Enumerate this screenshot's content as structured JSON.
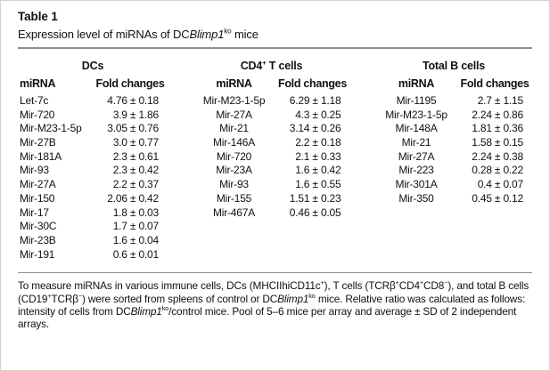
{
  "page": {
    "title": "Table 1",
    "subtitle_segments": [
      {
        "t": "Expression level of miRNAs of DC"
      },
      {
        "t": "Blimp1",
        "i": true
      },
      {
        "t": "ko",
        "sup": true
      },
      {
        "t": " mice"
      }
    ]
  },
  "table": {
    "col_headers": {
      "mirna": "miRNA",
      "fold": "Fold changes"
    },
    "groups": [
      {
        "name_segments": [
          {
            "t": "DCs"
          }
        ],
        "rows": [
          {
            "mirna": "Let-7c",
            "fold": "4.76 ± 0.18"
          },
          {
            "mirna": "Mir-720",
            "fold": "3.9 ± 1.86"
          },
          {
            "mirna": "Mir-M23-1-5p",
            "fold": "3.05 ± 0.76"
          },
          {
            "mirna": "Mir-27B",
            "fold": "3.0 ± 0.77"
          },
          {
            "mirna": "Mir-181A",
            "fold": "2.3 ± 0.61"
          },
          {
            "mirna": "Mir-93",
            "fold": "2.3 ± 0.42"
          },
          {
            "mirna": "Mir-27A",
            "fold": "2.2 ± 0.37"
          },
          {
            "mirna": "Mir-150",
            "fold": "2.06 ± 0.42"
          },
          {
            "mirna": "Mir-17",
            "fold": "1.8 ± 0.03"
          },
          {
            "mirna": "Mir-30C",
            "fold": "1.7 ± 0.07"
          },
          {
            "mirna": "Mir-23B",
            "fold": "1.6 ± 0.04"
          },
          {
            "mirna": "Mir-191",
            "fold": "0.6 ± 0.01"
          }
        ]
      },
      {
        "name_segments": [
          {
            "t": "CD4"
          },
          {
            "t": "+",
            "sup": true
          },
          {
            "t": " T cells"
          }
        ],
        "rows": [
          {
            "mirna": "Mir-M23-1-5p",
            "fold": "6.29 ± 1.18"
          },
          {
            "mirna": "Mir-27A",
            "fold": "4.3 ± 0.25"
          },
          {
            "mirna": "Mir-21",
            "fold": "3.14 ± 0.26"
          },
          {
            "mirna": "Mir-146A",
            "fold": "2.2 ± 0.18"
          },
          {
            "mirna": "Mir-720",
            "fold": "2.1 ± 0.33"
          },
          {
            "mirna": "Mir-23A",
            "fold": "1.6 ± 0.42"
          },
          {
            "mirna": "Mir-93",
            "fold": "1.6 ± 0.55"
          },
          {
            "mirna": "Mir-155",
            "fold": "1.51 ± 0.23"
          },
          {
            "mirna": "Mir-467A",
            "fold": "0.46 ± 0.05"
          }
        ]
      },
      {
        "name_segments": [
          {
            "t": "Total B cells"
          }
        ],
        "rows": [
          {
            "mirna": "Mir-1195",
            "fold": "2.7 ± 1.15"
          },
          {
            "mirna": "Mir-M23-1-5p",
            "fold": "2.24 ± 0.86"
          },
          {
            "mirna": "Mir-148A",
            "fold": "1.81 ± 0.36"
          },
          {
            "mirna": "Mir-21",
            "fold": "1.58 ± 0.15"
          },
          {
            "mirna": "Mir-27A",
            "fold": "2.24 ± 0.38"
          },
          {
            "mirna": "Mir-223",
            "fold": "0.28 ± 0.22"
          },
          {
            "mirna": "Mir-301A",
            "fold": "0.4 ± 0.07"
          },
          {
            "mirna": "Mir-350",
            "fold": "0.45 ± 0.12"
          }
        ]
      }
    ]
  },
  "footnote_segments": [
    {
      "t": "To measure miRNAs in various immune cells, DCs (MHCIIhiCD11c"
    },
    {
      "t": "+",
      "sup": true
    },
    {
      "t": "), T cells (TCRβ"
    },
    {
      "t": "+",
      "sup": true
    },
    {
      "t": "CD4"
    },
    {
      "t": "+",
      "sup": true
    },
    {
      "t": "CD8"
    },
    {
      "t": "−",
      "sup": true
    },
    {
      "t": "), and total B cells (CD19"
    },
    {
      "t": "+",
      "sup": true
    },
    {
      "t": "TCRβ"
    },
    {
      "t": "−",
      "sup": true
    },
    {
      "t": ") were sorted from spleens of control or DC"
    },
    {
      "t": "Blimp1",
      "i": true
    },
    {
      "t": "ko",
      "sup": true
    },
    {
      "t": " mice. Relative ratio was calculated as follows: intensity of cells from DC"
    },
    {
      "t": "Blimp1",
      "i": true
    },
    {
      "t": "ko",
      "sup": true
    },
    {
      "t": "/control mice. Pool of 5–6 mice per array and average ± SD of 2 independent arrays."
    }
  ]
}
